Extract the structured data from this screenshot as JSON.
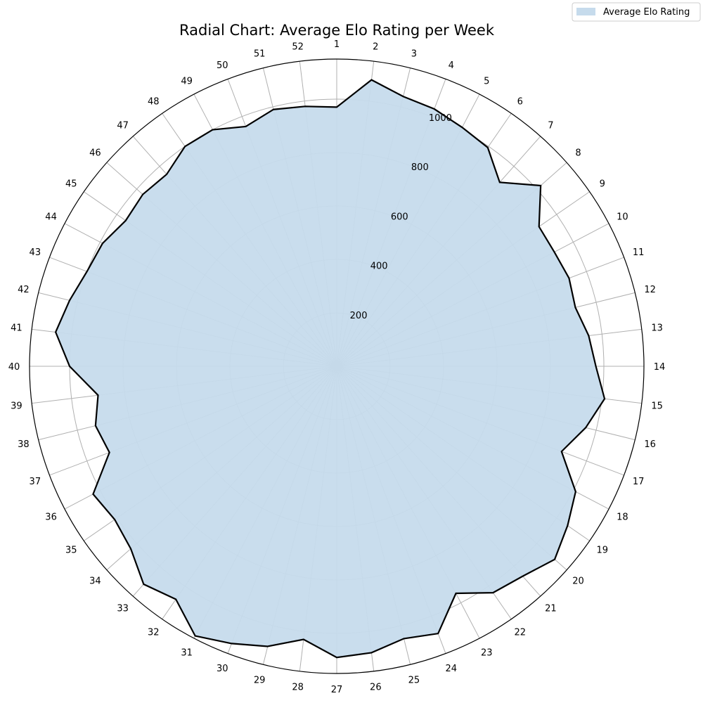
{
  "chart_data": {
    "type": "radar",
    "title": "Radial Chart: Average Elo Rating per Week",
    "categories": [
      "1",
      "2",
      "3",
      "4",
      "5",
      "6",
      "7",
      "8",
      "9",
      "10",
      "11",
      "12",
      "13",
      "14",
      "15",
      "16",
      "17",
      "18",
      "19",
      "20",
      "21",
      "22",
      "23",
      "24",
      "25",
      "26",
      "27",
      "28",
      "29",
      "30",
      "31",
      "32",
      "33",
      "34",
      "35",
      "36",
      "37",
      "38",
      "39",
      "40",
      "41",
      "42",
      "43",
      "44",
      "45",
      "46",
      "47",
      "48",
      "49",
      "50",
      "51",
      "52"
    ],
    "series": [
      {
        "name": "Average Elo Rating",
        "values": [
          970,
          1080,
          1040,
          1030,
          1010,
          995,
          920,
          1020,
          920,
          920,
          930,
          920,
          950,
          970,
          1010,
          960,
          900,
          1010,
          1050,
          1090,
          1050,
          1030,
          960,
          1070,
          1050,
          1080,
          1090,
          1030,
          1080,
          1110,
          1140,
          1060,
          1090,
          1030,
          1010,
          1030,
          910,
          930,
          900,
          1000,
          1060,
          1030,
          1000,
          990,
          960,
          970,
          960,
          1000,
          1000,
          960,
          990,
          980
        ]
      }
    ],
    "r_ticks": [
      200,
      400,
      600,
      800,
      1000
    ],
    "rlim": [
      0,
      1150
    ],
    "grid": true,
    "legend": "top-right",
    "colors": {
      "fill": "#c6dbec",
      "line": "#000000",
      "grid": "#b0b0b0"
    }
  }
}
